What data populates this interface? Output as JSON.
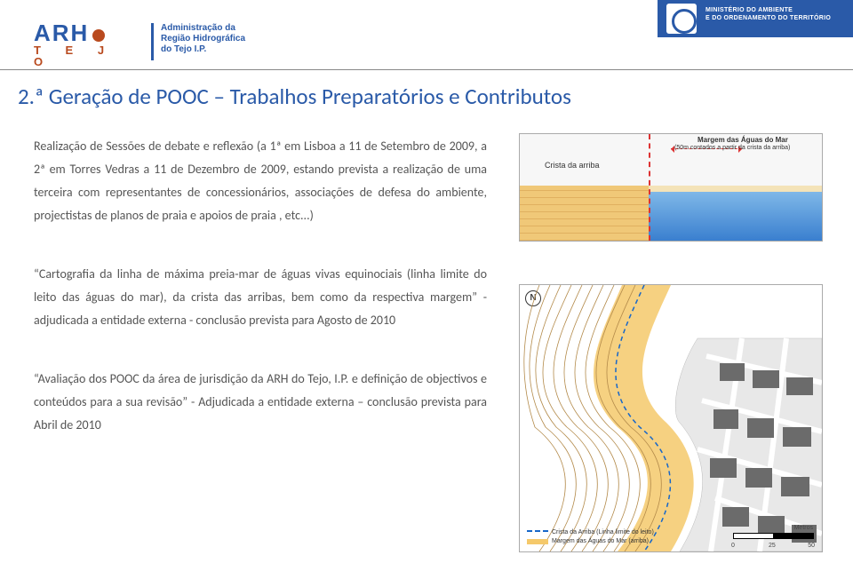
{
  "header": {
    "logo_main": "ARH",
    "logo_sub": "T  E  J  O",
    "logo_admin": "Administração da\nRegião Hidrográfica\ndo Tejo I.P.",
    "ministry": "MINISTÉRIO DO AMBIENTE\nE DO ORDENAMENTO DO TERRITÓRIO"
  },
  "title": "2.ª Geração de POOC –   Trabalhos Preparatórios e Contributos",
  "para1": "Realização de Sessões de debate e reflexão (a 1ª em Lisboa a 11 de Setembro de 2009, a 2ª em Torres Vedras a 11 de Dezembro de 2009, estando prevista a realização de uma terceira com representantes de concessionários, associações de defesa do ambiente, projectistas de planos de praia e apoios de praia , etc...)",
  "para2": "“Cartografia da linha de máxima preia-mar de águas vivas equinociais (linha limite do leito das águas do mar), da crista das arribas, bem como da respectiva margem”  -  adjudicada a entidade externa -  conclusão prevista para Agosto de 2010",
  "para3": "“Avaliação dos POOC da área de jurisdição da ARH do Tejo, I.P. e definição de objectivos e conteúdos para a sua revisão” -  Adjudicada a entidade externa – conclusão prevista para Abril de 2010",
  "fig1": {
    "crista": "Crista da arriba",
    "margem_title": "Margem das Águas do Mar",
    "margem_sub": "(50m contados a partir da crista da arriba)",
    "cliff_color": "#f0c878",
    "sea_color_top": "#7fb8e8",
    "sea_color_bot": "#3a7fcf",
    "margin_line_color": "#d33"
  },
  "fig2": {
    "north": "N",
    "contour_color": "#b38a4a",
    "coast_line_color": "#1767c9",
    "margin_fill": "#f5c96b",
    "building_fill": "#6b6b6b",
    "scale": {
      "t0": "0",
      "t1": "25",
      "t2": "50",
      "unit": "Metros"
    },
    "legend_a": "Crista da Arriba (Linha limite do leito)",
    "legend_b": "Margem das Águas do Mar (arriba)"
  }
}
